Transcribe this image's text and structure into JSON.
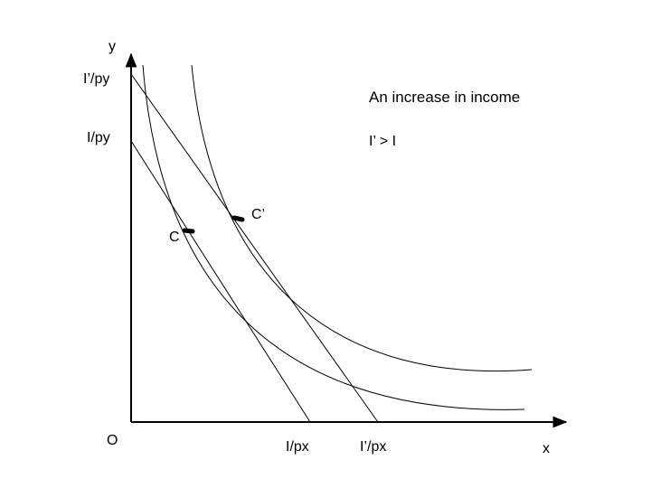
{
  "axes": {
    "y_label": "y",
    "x_label": "x",
    "origin_label": "O"
  },
  "intercepts": {
    "y_new": "I’/py",
    "y_old": "I/py",
    "x_old": "I/px",
    "x_new": "I’/px"
  },
  "annotation": {
    "title": "An increase in income",
    "condition": "I’ > I"
  },
  "points": {
    "old": "C",
    "new": "C’"
  },
  "colors": {
    "stroke": "#000000",
    "background": "#ffffff"
  }
}
